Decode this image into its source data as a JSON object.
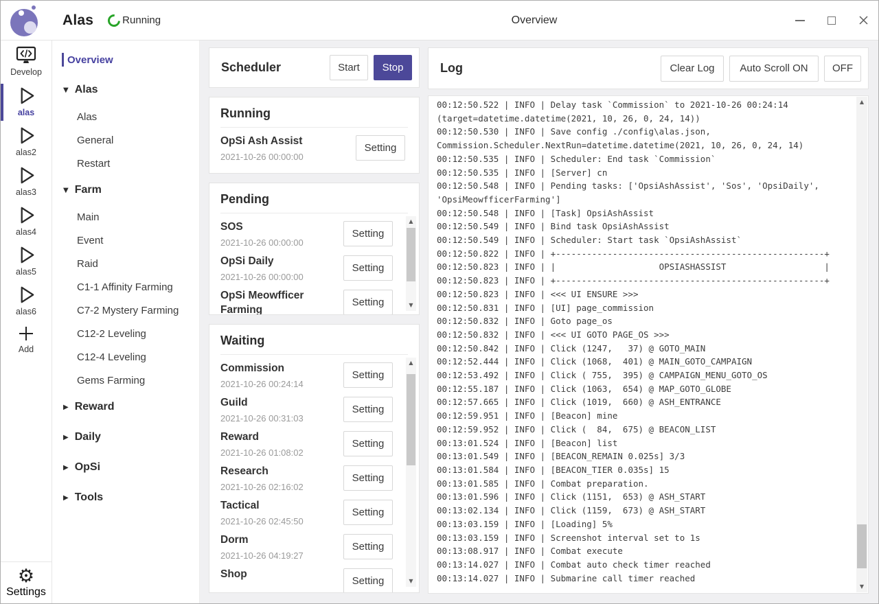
{
  "titlebar": {
    "app_title": "Alas",
    "status": "Running",
    "window_title": "Overview"
  },
  "icons": {
    "scroll_up": "▲",
    "scroll_down": "▼",
    "section_expanded": "▼",
    "section_collapsed": "▶",
    "gear": "⚙",
    "add": "+"
  },
  "colors": {
    "accent_purple": "#4c4899",
    "active_text_purple": "#4641a0",
    "running_green": "#28a428",
    "main_background": "#f0f0f2"
  },
  "rail": {
    "develop_label": "Develop",
    "instances": [
      {
        "label": "alas",
        "active": true
      },
      {
        "label": "alas2",
        "active": false
      },
      {
        "label": "alas3",
        "active": false
      },
      {
        "label": "alas4",
        "active": false
      },
      {
        "label": "alas5",
        "active": false
      },
      {
        "label": "alas6",
        "active": false
      }
    ],
    "add_label": "Add",
    "settings_label": "Settings"
  },
  "nav": {
    "overview_label": "Overview",
    "sections": [
      {
        "label": "Alas",
        "expanded": true,
        "children": [
          "Alas",
          "General",
          "Restart"
        ]
      },
      {
        "label": "Farm",
        "expanded": true,
        "children": [
          "Main",
          "Event",
          "Raid",
          "C1-1 Affinity Farming",
          "C7-2 Mystery Farming",
          "C12-2 Leveling",
          "C12-4 Leveling",
          "Gems Farming"
        ]
      },
      {
        "label": "Reward",
        "expanded": false,
        "children": []
      },
      {
        "label": "Daily",
        "expanded": false,
        "children": []
      },
      {
        "label": "OpSi",
        "expanded": false,
        "children": []
      },
      {
        "label": "Tools",
        "expanded": false,
        "children": []
      }
    ]
  },
  "labels": {
    "setting": "Setting"
  },
  "scheduler": {
    "title": "Scheduler",
    "start_label": "Start",
    "stop_label": "Stop"
  },
  "running": {
    "title": "Running",
    "items": [
      {
        "name": "OpSi Ash Assist",
        "time": "2021-10-26 00:00:00"
      }
    ]
  },
  "pending": {
    "title": "Pending",
    "items": [
      {
        "name": "SOS",
        "time": "2021-10-26 00:00:00"
      },
      {
        "name": "OpSi Daily",
        "time": "2021-10-26 00:00:00"
      },
      {
        "name": "OpSi Meowfficer Farming",
        "time": ""
      }
    ]
  },
  "waiting": {
    "title": "Waiting",
    "items": [
      {
        "name": "Commission",
        "time": "2021-10-26 00:24:14"
      },
      {
        "name": "Guild",
        "time": "2021-10-26 00:31:03"
      },
      {
        "name": "Reward",
        "time": "2021-10-26 01:08:02"
      },
      {
        "name": "Research",
        "time": "2021-10-26 02:16:02"
      },
      {
        "name": "Tactical",
        "time": "2021-10-26 02:45:50"
      },
      {
        "name": "Dorm",
        "time": "2021-10-26 04:19:27"
      },
      {
        "name": "Shop",
        "time": ""
      }
    ]
  },
  "log": {
    "title": "Log",
    "clear_label": "Clear Log",
    "autoscroll_on_label": "Auto Scroll ON",
    "off_label": "OFF",
    "lines": [
      "00:12:50.522 | INFO | Delay task `Commission` to 2021-10-26 00:24:14",
      "(target=datetime.datetime(2021, 10, 26, 0, 24, 14))",
      "00:12:50.530 | INFO | Save config ./config\\alas.json,",
      "Commission.Scheduler.NextRun=datetime.datetime(2021, 10, 26, 0, 24, 14)",
      "00:12:50.535 | INFO | Scheduler: End task `Commission`",
      "00:12:50.535 | INFO | [Server] cn",
      "00:12:50.548 | INFO | Pending tasks: ['OpsiAshAssist', 'Sos', 'OpsiDaily',",
      "'OpsiMeowfficerFarming']",
      "00:12:50.548 | INFO | [Task] OpsiAshAssist",
      "00:12:50.549 | INFO | Bind task OpsiAshAssist",
      "00:12:50.549 | INFO | Scheduler: Start task `OpsiAshAssist`",
      "00:12:50.822 | INFO | +----------------------------------------------------+",
      "00:12:50.823 | INFO | |                    OPSIASHASSIST                   |",
      "00:12:50.823 | INFO | +----------------------------------------------------+",
      "00:12:50.823 | INFO | <<< UI ENSURE >>>",
      "00:12:50.831 | INFO | [UI] page_commission",
      "00:12:50.832 | INFO | Goto page_os",
      "00:12:50.832 | INFO | <<< UI GOTO PAGE_OS >>>",
      "00:12:50.842 | INFO | Click (1247,   37) @ GOTO_MAIN",
      "00:12:52.444 | INFO | Click (1068,  401) @ MAIN_GOTO_CAMPAIGN",
      "00:12:53.492 | INFO | Click ( 755,  395) @ CAMPAIGN_MENU_GOTO_OS",
      "00:12:55.187 | INFO | Click (1063,  654) @ MAP_GOTO_GLOBE",
      "00:12:57.665 | INFO | Click (1019,  660) @ ASH_ENTRANCE",
      "00:12:59.951 | INFO | [Beacon] mine",
      "00:12:59.952 | INFO | Click (  84,  675) @ BEACON_LIST",
      "00:13:01.524 | INFO | [Beacon] list",
      "00:13:01.549 | INFO | [BEACON_REMAIN 0.025s] 3/3",
      "00:13:01.584 | INFO | [BEACON_TIER 0.035s] 15",
      "00:13:01.585 | INFO | Combat preparation.",
      "00:13:01.596 | INFO | Click (1151,  653) @ ASH_START",
      "00:13:02.134 | INFO | Click (1159,  673) @ ASH_START",
      "00:13:03.159 | INFO | [Loading] 5%",
      "00:13:03.159 | INFO | Screenshot interval set to 1s",
      "00:13:08.917 | INFO | Combat execute",
      "00:13:14.027 | INFO | Combat auto check timer reached",
      "00:13:14.027 | INFO | Submarine call timer reached"
    ]
  }
}
